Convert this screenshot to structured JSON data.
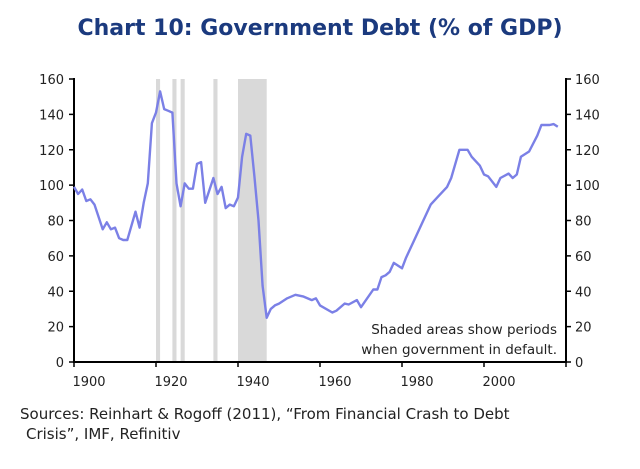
{
  "title": "Chart 10: Government Debt (% of GDP)",
  "source_line1": "Sources: Reinhart & Rogoff (2011), “From Financial Crash to Debt",
  "source_line2": "Crisis”, IMF, Refinitiv",
  "chart_data": {
    "type": "line",
    "title": "Chart 10: Government Debt (% of GDP)",
    "xlabel": "",
    "ylabel": "",
    "xlim": [
      1900,
      2020
    ],
    "ylim": [
      0,
      160
    ],
    "x_ticks": [
      1900,
      1920,
      1940,
      1960,
      1980,
      2000
    ],
    "y_ticks": [
      0,
      20,
      40,
      60,
      80,
      100,
      120,
      140,
      160
    ],
    "y_axis_both_sides": true,
    "grid": false,
    "line_color": "#7b80e6",
    "shade_color": "#d9d9d9",
    "annotation": [
      "Shaded areas show periods",
      "when government in default."
    ],
    "default_periods": [
      [
        1920,
        1921
      ],
      [
        1924,
        1925
      ],
      [
        1926,
        1927
      ],
      [
        1934,
        1935
      ],
      [
        1940,
        1947
      ]
    ],
    "series": [
      {
        "x": [
          1900,
          1901,
          1902,
          1903,
          1904,
          1905,
          1907,
          1908,
          1909,
          1910,
          1911,
          1912,
          1913,
          1915,
          1916,
          1917,
          1918,
          1919,
          1920,
          1921,
          1922,
          1923,
          1924,
          1925,
          1926,
          1927,
          1928,
          1929,
          1930,
          1931,
          1932,
          1934,
          1935,
          1936,
          1937,
          1938,
          1939,
          1940,
          1941,
          1942,
          1943,
          1944,
          1945,
          1946,
          1947,
          1948,
          1949,
          1950,
          1952,
          1954,
          1956,
          1958,
          1959,
          1960,
          1963,
          1964,
          1966,
          1967,
          1969,
          1970,
          1973,
          1974,
          1975,
          1976,
          1977,
          1978,
          1980,
          1981,
          1983,
          1985,
          1987,
          1989,
          1991,
          1992,
          1994,
          1996,
          1997,
          1999,
          2000,
          2001,
          2003,
          2004,
          2006,
          2007,
          2008,
          2009,
          2011,
          2013,
          2014,
          2016,
          2017,
          2018
        ],
        "y": [
          99,
          95,
          97.5,
          91,
          92,
          89,
          75,
          79,
          75,
          76,
          70,
          69,
          69,
          85,
          76,
          90,
          101,
          135,
          141,
          153,
          143,
          142,
          141,
          101,
          88,
          101,
          98,
          98,
          112,
          113,
          90,
          104,
          95,
          99,
          87,
          89,
          88,
          93,
          116,
          129,
          128,
          105,
          80,
          43,
          25,
          30,
          32,
          33,
          36,
          38,
          37,
          35,
          36,
          32,
          28,
          29,
          33,
          32.5,
          35,
          31,
          41,
          41,
          48,
          49,
          51,
          56,
          53,
          59,
          69,
          79,
          89,
          94,
          99,
          104,
          120,
          120,
          116,
          111,
          106,
          105,
          99,
          104,
          106.5,
          104,
          106,
          116,
          119,
          128,
          134,
          134,
          134.5,
          133
        ]
      }
    ]
  }
}
